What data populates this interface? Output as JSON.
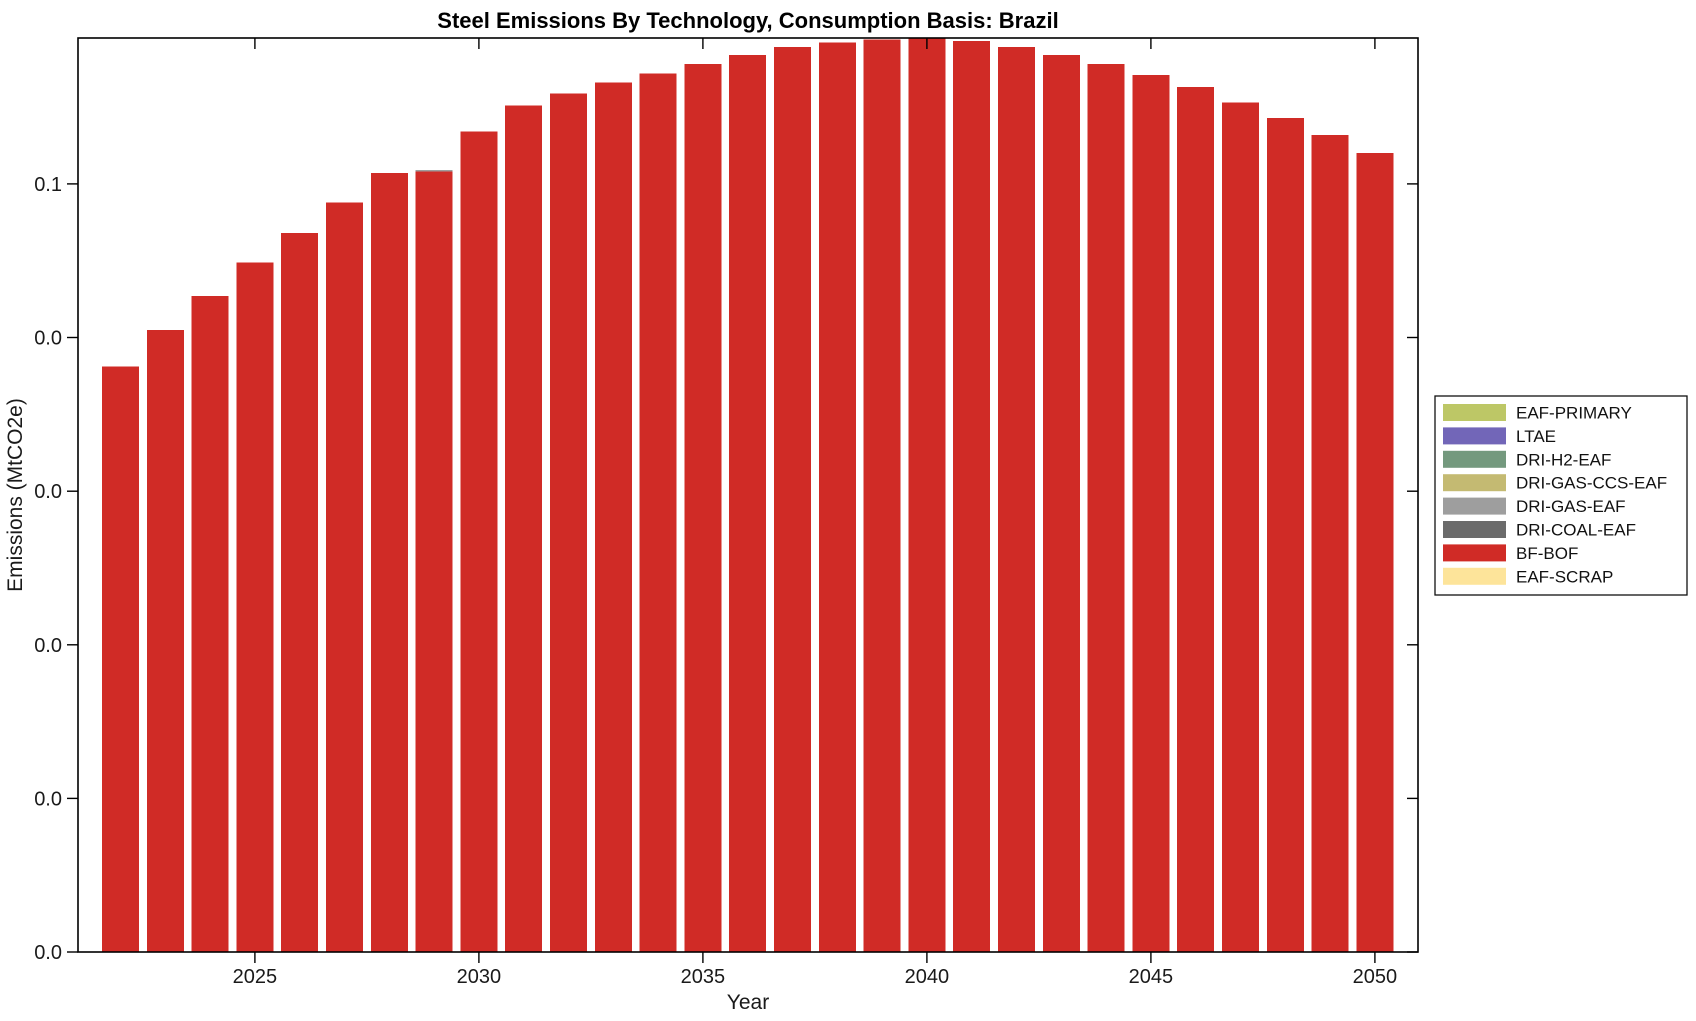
{
  "figure": {
    "background_color": "#ffffff",
    "frame_color": "#000000"
  },
  "chart_data": {
    "type": "bar",
    "stacked": true,
    "title": "Steel Emissions By Technology, Consumption Basis: Brazil",
    "xlabel": "Year",
    "ylabel": "Emissions (MtCO2e)",
    "grid": false,
    "legend_position": "right-outside",
    "ylim": [
      0,
      0.0595
    ],
    "x": [
      2022,
      2023,
      2024,
      2025,
      2026,
      2027,
      2028,
      2029,
      2030,
      2031,
      2032,
      2033,
      2034,
      2035,
      2036,
      2037,
      2038,
      2039,
      2040,
      2041,
      2042,
      2043,
      2044,
      2045,
      2046,
      2047,
      2048,
      2049,
      2050
    ],
    "x_ticks": [
      2025,
      2030,
      2035,
      2040,
      2045,
      2050
    ],
    "y_ticks": [
      {
        "value": 0.0,
        "label": "0.0"
      },
      {
        "value": 0.01,
        "label": "0.0"
      },
      {
        "value": 0.02,
        "label": "0.0"
      },
      {
        "value": 0.03,
        "label": "0.0"
      },
      {
        "value": 0.04,
        "label": "0.0"
      },
      {
        "value": 0.05,
        "label": "0.1"
      }
    ],
    "series": [
      {
        "name": "EAF-SCRAP",
        "color": "#fde49a",
        "values": [
          0,
          0,
          0,
          0,
          0,
          0,
          0,
          0,
          0,
          0,
          0,
          0,
          0,
          0,
          0,
          0,
          0,
          0,
          0,
          0,
          0,
          0,
          0,
          0,
          0,
          0,
          0,
          0,
          0
        ]
      },
      {
        "name": "BF-BOF",
        "color": "#d02b26",
        "values": [
          0.0381,
          0.0405,
          0.0427,
          0.0449,
          0.0468,
          0.0488,
          0.0507,
          0.0508,
          0.0534,
          0.0551,
          0.0559,
          0.0566,
          0.0572,
          0.0578,
          0.0584,
          0.0589,
          0.0592,
          0.0594,
          0.0595,
          0.0593,
          0.0589,
          0.0584,
          0.0578,
          0.0571,
          0.0563,
          0.0553,
          0.0543,
          0.0532,
          0.052
        ]
      },
      {
        "name": "DRI-COAL-EAF",
        "color": "#6b6b6b",
        "values": [
          0,
          0,
          0,
          0,
          0,
          0,
          0,
          0,
          0,
          0,
          0,
          0,
          0,
          0,
          0,
          0,
          0,
          0,
          0,
          0,
          0,
          0,
          0,
          0,
          0,
          0,
          0,
          0,
          0
        ]
      },
      {
        "name": "DRI-GAS-EAF",
        "color": "#9e9e9e",
        "values": [
          0,
          0,
          0,
          0,
          0,
          0,
          0,
          0.0001,
          0,
          0,
          0,
          0,
          0,
          0,
          0,
          0,
          0,
          0,
          0,
          0,
          0,
          0,
          0,
          0,
          0,
          0,
          0,
          0,
          0
        ]
      },
      {
        "name": "DRI-GAS-CCS-EAF",
        "color": "#c4ba72",
        "values": [
          0,
          0,
          0,
          0,
          0,
          0,
          0,
          0,
          0,
          0,
          0,
          0,
          0,
          0,
          0,
          0,
          0,
          0,
          0,
          0,
          0,
          0,
          0,
          0,
          0,
          0,
          0,
          0,
          0
        ]
      },
      {
        "name": "DRI-H2-EAF",
        "color": "#74997e",
        "values": [
          0,
          0,
          0,
          0,
          0,
          0,
          0,
          0,
          0,
          0,
          0,
          0,
          0,
          0,
          0,
          0,
          0,
          0,
          0,
          0,
          0,
          0,
          0,
          0,
          0,
          0,
          0,
          0,
          0
        ]
      },
      {
        "name": "LTAE",
        "color": "#7266b8",
        "values": [
          0,
          0,
          0,
          0,
          0,
          0,
          0,
          0,
          0,
          0,
          0,
          0,
          0,
          0,
          0,
          0,
          0,
          0,
          0,
          0,
          0,
          0,
          0,
          0,
          0,
          0,
          0,
          0,
          0
        ]
      },
      {
        "name": "EAF-PRIMARY",
        "color": "#bdc766",
        "values": [
          0,
          0,
          0,
          0,
          0,
          0,
          0,
          0,
          0,
          0,
          0,
          0,
          0,
          0,
          0,
          0,
          0,
          0,
          0,
          0,
          0,
          0,
          0,
          0,
          0,
          0,
          0,
          0,
          0
        ]
      }
    ],
    "legend": [
      {
        "label": "EAF-PRIMARY",
        "color": "#bdc766"
      },
      {
        "label": "LTAE",
        "color": "#7266b8"
      },
      {
        "label": "DRI-H2-EAF",
        "color": "#74997e"
      },
      {
        "label": "DRI-GAS-CCS-EAF",
        "color": "#c4ba72"
      },
      {
        "label": "DRI-GAS-EAF",
        "color": "#9e9e9e"
      },
      {
        "label": "DRI-COAL-EAF",
        "color": "#6b6b6b"
      },
      {
        "label": "BF-BOF",
        "color": "#d02b26"
      },
      {
        "label": "EAF-SCRAP",
        "color": "#fde49a"
      }
    ]
  }
}
